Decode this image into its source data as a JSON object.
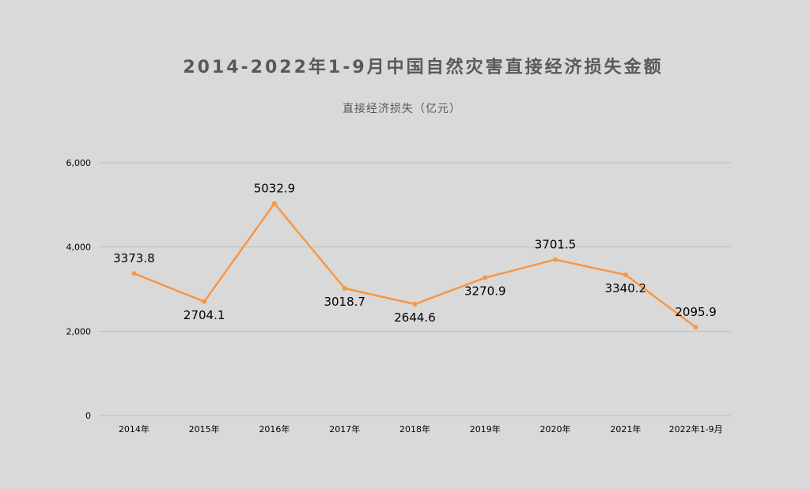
{
  "chart_data": {
    "type": "line",
    "title": "2014-2022年1-9月中国自然灾害直接经济损失金额",
    "ylabel": "直接经济损失（亿元）",
    "xlabel": "",
    "categories": [
      "2014年",
      "2015年",
      "2016年",
      "2017年",
      "2018年",
      "2019年",
      "2020年",
      "2021年",
      "2022年1-9月"
    ],
    "series": [
      {
        "name": "直接经济损失（亿元）",
        "values": [
          3373.8,
          2704.1,
          5032.9,
          3018.7,
          2644.6,
          3270.9,
          3701.5,
          3340.2,
          2095.9
        ],
        "labels": [
          "3373.8",
          "2704.1",
          "5032.9",
          "3018.7",
          "2644.6",
          "3270.9",
          "3701.5",
          "3340.2",
          "2095.9"
        ]
      }
    ],
    "ylim": [
      0,
      6000
    ],
    "yticks": [
      0,
      2000,
      4000,
      6000
    ],
    "ytick_labels": [
      "0",
      "2,000",
      "4,000",
      "6,000"
    ],
    "grid": true,
    "legend": "none",
    "colors": {
      "line": "#f79646",
      "grid": "#bfbfbf",
      "background": "#d9d9d9"
    }
  }
}
